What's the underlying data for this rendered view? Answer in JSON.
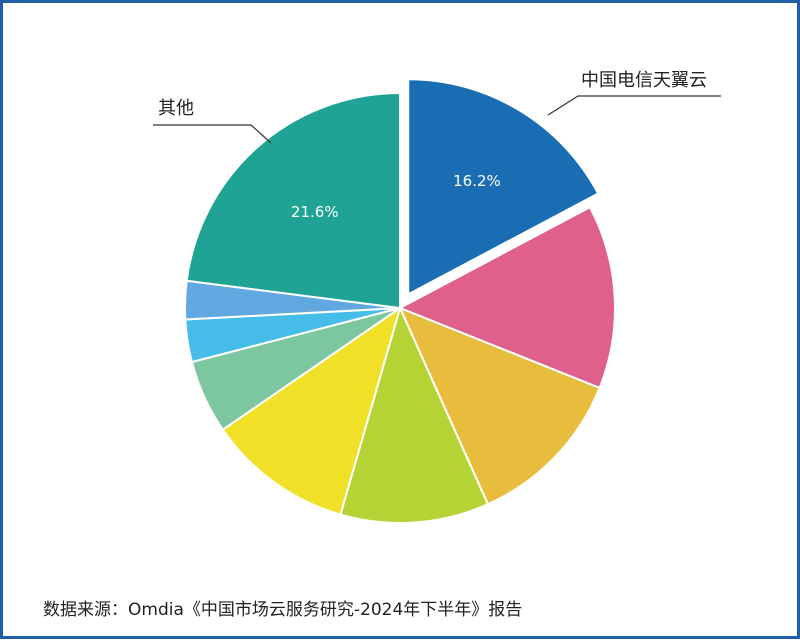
{
  "chart_data": {
    "type": "pie",
    "series": [
      {
        "label": "中国电信天翼云",
        "value": 16.2,
        "value_label": "16.2%",
        "color": "#1a6db3",
        "exploded": true
      },
      {
        "label": "",
        "value": 13.0,
        "value_label": "",
        "color": "#e0608c"
      },
      {
        "label": "",
        "value": 11.5,
        "value_label": "",
        "color": "#e8bd3e"
      },
      {
        "label": "",
        "value": 10.5,
        "value_label": "",
        "color": "#b5d334"
      },
      {
        "label": "",
        "value": 10.3,
        "value_label": "",
        "color": "#f0e027"
      },
      {
        "label": "",
        "value": 5.2,
        "value_label": "",
        "color": "#7cc6a0"
      },
      {
        "label": "",
        "value": 3.0,
        "value_label": "",
        "color": "#45bde8"
      },
      {
        "label": "",
        "value": 2.7,
        "value_label": "",
        "color": "#62a8e0"
      },
      {
        "label": "其他",
        "value": 21.6,
        "value_label": "21.6%",
        "color": "#1fa394"
      }
    ]
  },
  "source_note": "数据来源：Omdia《中国市场云服务研究-2024年下半年》报告"
}
